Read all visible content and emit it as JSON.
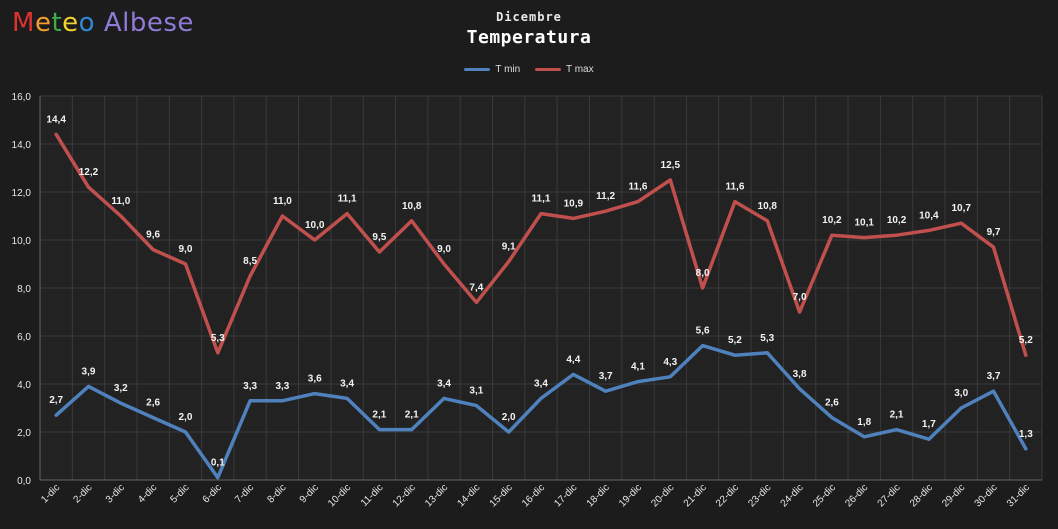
{
  "logo": {
    "letters": [
      "M",
      "e",
      "t",
      "e",
      "o",
      " ",
      "A",
      "l",
      "b",
      "e",
      "s",
      "e"
    ],
    "colors": [
      "#e0322e",
      "#f29d2c",
      "#3fae49",
      "#f2d22c",
      "#2f88d6",
      "#ffffff",
      "#8f7bd8",
      "#8f7bd8",
      "#8f7bd8",
      "#8f7bd8",
      "#8f7bd8",
      "#8f7bd8"
    ]
  },
  "header": {
    "subtitle": "Dicembre",
    "title": "Temperatura"
  },
  "legend": {
    "tmin_label": "T min",
    "tmax_label": "T max"
  },
  "colors": {
    "tmin": "#4f81bd",
    "tmax": "#c0504d",
    "background": "#1c1c1c",
    "grid": "#3a3a3a",
    "text": "#e6e6e6"
  },
  "chart_data": {
    "type": "line",
    "title": "Temperatura",
    "subtitle": "Dicembre",
    "xlabel": "",
    "ylabel": "",
    "ylim": [
      0,
      16
    ],
    "yticks": [
      "0,0",
      "2,0",
      "4,0",
      "6,0",
      "8,0",
      "10,0",
      "12,0",
      "14,0",
      "16,0"
    ],
    "grid": true,
    "legend_position": "top-center",
    "categories": [
      "1-dic",
      "2-dic",
      "3-dic",
      "4-dic",
      "5-dic",
      "6-dic",
      "7-dic",
      "8-dic",
      "9-dic",
      "10-dic",
      "11-dic",
      "12-dic",
      "13-dic",
      "14-dic",
      "15-dic",
      "16-dic",
      "17-dic",
      "18-dic",
      "19-dic",
      "20-dic",
      "21-dic",
      "22-dic",
      "23-dic",
      "24-dic",
      "25-dic",
      "26-dic",
      "27-dic",
      "28-dic",
      "29-dic",
      "30-dic",
      "31-dic"
    ],
    "series": [
      {
        "name": "T min",
        "color": "#4f81bd",
        "values": [
          2.7,
          3.9,
          3.2,
          2.6,
          2.0,
          0.1,
          3.3,
          3.3,
          3.6,
          3.4,
          2.1,
          2.1,
          3.4,
          3.1,
          2.0,
          3.4,
          4.4,
          3.7,
          4.1,
          4.3,
          5.6,
          5.2,
          5.3,
          3.8,
          2.6,
          1.8,
          2.1,
          1.7,
          3.0,
          3.7,
          1.3
        ],
        "labels": [
          "2,7",
          "3,9",
          "3,2",
          "2,6",
          "2,0",
          "0,1",
          "3,3",
          "3,3",
          "3,6",
          "3,4",
          "2,1",
          "2,1",
          "3,4",
          "3,1",
          "2,0",
          "3,4",
          "4,4",
          "3,7",
          "4,1",
          "4,3",
          "5,6",
          "5,2",
          "5,3",
          "3,8",
          "2,6",
          "1,8",
          "2,1",
          "1,7",
          "3,0",
          "3,7",
          "1,3"
        ]
      },
      {
        "name": "T max",
        "color": "#c0504d",
        "values": [
          14.4,
          12.2,
          11.0,
          9.6,
          9.0,
          5.3,
          8.5,
          11.0,
          10.0,
          11.1,
          9.5,
          10.8,
          9.0,
          7.4,
          9.1,
          11.1,
          10.9,
          11.2,
          11.6,
          12.5,
          8.0,
          11.6,
          10.8,
          7.0,
          10.2,
          10.1,
          10.2,
          10.4,
          10.7,
          9.7,
          5.2
        ],
        "labels": [
          "14,4",
          "12,2",
          "11,0",
          "9,6",
          "9,0",
          "5,3",
          "8,5",
          "11,0",
          "10,0",
          "11,1",
          "9,5",
          "10,8",
          "9,0",
          "7,4",
          "9,1",
          "11,1",
          "10,9",
          "11,2",
          "11,6",
          "12,5",
          "8,0",
          "11,6",
          "10,8",
          "7,0",
          "10,2",
          "10,1",
          "10,2",
          "10,4",
          "10,7",
          "9,7",
          "5,2"
        ]
      }
    ]
  }
}
